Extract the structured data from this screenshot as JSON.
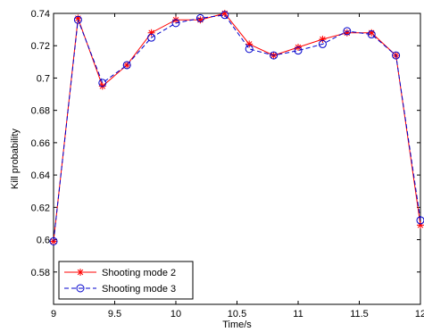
{
  "chart_data": {
    "type": "line",
    "xlabel": "Time/s",
    "ylabel": "Kill probability",
    "xlim": [
      9,
      12
    ],
    "ylim": [
      0.56,
      0.74
    ],
    "xticks": [
      9,
      9.5,
      10,
      10.5,
      11,
      11.5,
      12
    ],
    "xtick_labels": [
      "9",
      "9.5",
      "10",
      "10.5",
      "11",
      "11.5",
      "12"
    ],
    "yticks": [
      0.58,
      0.6,
      0.62,
      0.64,
      0.66,
      0.68,
      0.7,
      0.72,
      0.74
    ],
    "ytick_labels": [
      "0.58",
      "0.6",
      "0.62",
      "0.64",
      "0.66",
      "0.68",
      "0.7",
      "0.72",
      "0.74"
    ],
    "grid": false,
    "legend_position": "bottom-left",
    "x": [
      9.0,
      9.2,
      9.4,
      9.6,
      9.8,
      10.0,
      10.2,
      10.4,
      10.6,
      10.8,
      11.0,
      11.2,
      11.4,
      11.6,
      11.8,
      12.0
    ],
    "series": [
      {
        "name": "Shooting mode 2",
        "color": "#ff0000",
        "line_style": "solid",
        "marker": "star",
        "values": [
          0.599,
          0.737,
          0.695,
          0.708,
          0.728,
          0.736,
          0.736,
          0.74,
          0.721,
          0.714,
          0.719,
          0.724,
          0.728,
          0.728,
          0.714,
          0.609
        ]
      },
      {
        "name": "Shooting mode 3",
        "color": "#0000cc",
        "line_style": "dashed",
        "marker": "circle",
        "values": [
          0.599,
          0.736,
          0.697,
          0.708,
          0.725,
          0.734,
          0.737,
          0.739,
          0.718,
          0.714,
          0.717,
          0.721,
          0.729,
          0.727,
          0.714,
          0.612
        ]
      }
    ]
  }
}
